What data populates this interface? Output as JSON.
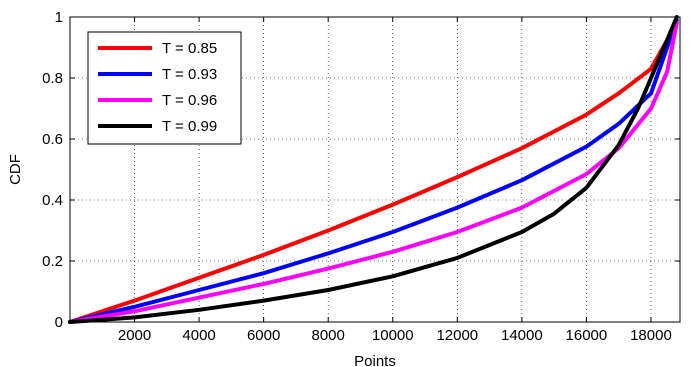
{
  "chart_data": {
    "type": "line",
    "xlabel": "Points",
    "ylabel": "CDF",
    "xlim": [
      0,
      18900
    ],
    "ylim": [
      0,
      1
    ],
    "x_ticks": [
      2000,
      4000,
      6000,
      8000,
      10000,
      12000,
      14000,
      16000,
      18000
    ],
    "y_ticks": [
      0,
      0.2,
      0.4,
      0.6,
      0.8,
      1
    ],
    "x_tick_labels": [
      "2000",
      "4000",
      "6000",
      "8000",
      "10000",
      "12000",
      "14000",
      "16000",
      "18000"
    ],
    "y_tick_labels": [
      "0",
      "0.2",
      "0.4",
      "0.6",
      "0.8",
      "1"
    ],
    "grid": "dotted",
    "legend_position": "top-left",
    "series": [
      {
        "name": "T = 0.85",
        "color": "#ff0000",
        "x": [
          0,
          2000,
          4000,
          6000,
          8000,
          10000,
          12000,
          14000,
          16000,
          17000,
          18000,
          18800
        ],
        "y": [
          0,
          0.07,
          0.145,
          0.22,
          0.3,
          0.385,
          0.475,
          0.57,
          0.68,
          0.75,
          0.83,
          0.98
        ]
      },
      {
        "name": "T = 0.93",
        "color": "#0000ff",
        "x": [
          0,
          2000,
          4000,
          6000,
          8000,
          10000,
          12000,
          14000,
          16000,
          17000,
          18000,
          18800
        ],
        "y": [
          0,
          0.05,
          0.105,
          0.16,
          0.225,
          0.295,
          0.375,
          0.465,
          0.575,
          0.65,
          0.75,
          0.99
        ]
      },
      {
        "name": "T = 0.96",
        "color": "#ff00ff",
        "x": [
          0,
          2000,
          4000,
          6000,
          8000,
          10000,
          12000,
          14000,
          16000,
          17000,
          18000,
          18500,
          18800
        ],
        "y": [
          0,
          0.035,
          0.08,
          0.125,
          0.175,
          0.23,
          0.295,
          0.375,
          0.485,
          0.57,
          0.7,
          0.82,
          0.98
        ]
      },
      {
        "name": "T = 0.99",
        "color": "#000000",
        "x": [
          0,
          2000,
          4000,
          6000,
          8000,
          10000,
          12000,
          14000,
          15000,
          16000,
          17000,
          17600,
          18000,
          18400,
          18800
        ],
        "y": [
          0,
          0.015,
          0.04,
          0.07,
          0.105,
          0.15,
          0.21,
          0.295,
          0.355,
          0.44,
          0.58,
          0.7,
          0.8,
          0.9,
          1.0
        ]
      }
    ]
  }
}
